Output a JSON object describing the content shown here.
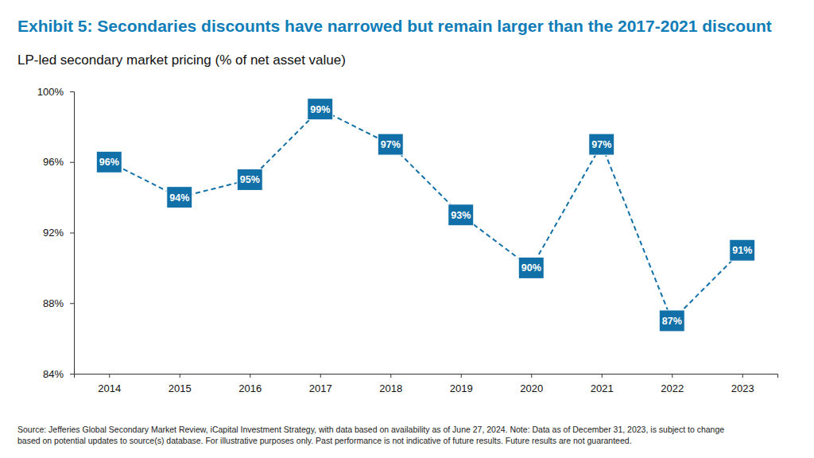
{
  "chart_data": {
    "type": "line",
    "title": "Exhibit 5: Secondaries discounts have narrowed but remain larger than the 2017-2021 discount",
    "subtitle": "LP-led secondary market pricing (% of net asset value)",
    "annotations": [
      "Source: Jefferies Global Secondary Market Review, iCapital Investment Strategy, with data based on availability as of June 27, 2024. Note: Data as of December 31, 2023, is subject to change",
      "based on potential updates to source(s) database. For illustrative purposes only. Past performance is not indicative of future results. Future results are not guaranteed."
    ],
    "categories": [
      "2014",
      "2015",
      "2016",
      "2017",
      "2018",
      "2019",
      "2020",
      "2021",
      "2022",
      "2023"
    ],
    "values": [
      96,
      94,
      95,
      99,
      97,
      93,
      90,
      97,
      87,
      91
    ],
    "value_labels": [
      "96%",
      "94%",
      "95%",
      "99%",
      "97%",
      "93%",
      "90%",
      "97%",
      "87%",
      "91%"
    ],
    "color": "#1170a8",
    "marker": "square",
    "line_style": "dashed",
    "data_labels": true,
    "grid": false,
    "ylim": [
      84,
      100
    ],
    "yticks": [
      {
        "value": 84,
        "label": "84%"
      },
      {
        "value": 88,
        "label": "88%"
      },
      {
        "value": 92,
        "label": "92%"
      },
      {
        "value": 96,
        "label": "96%"
      },
      {
        "value": 100,
        "label": "100%"
      }
    ]
  }
}
